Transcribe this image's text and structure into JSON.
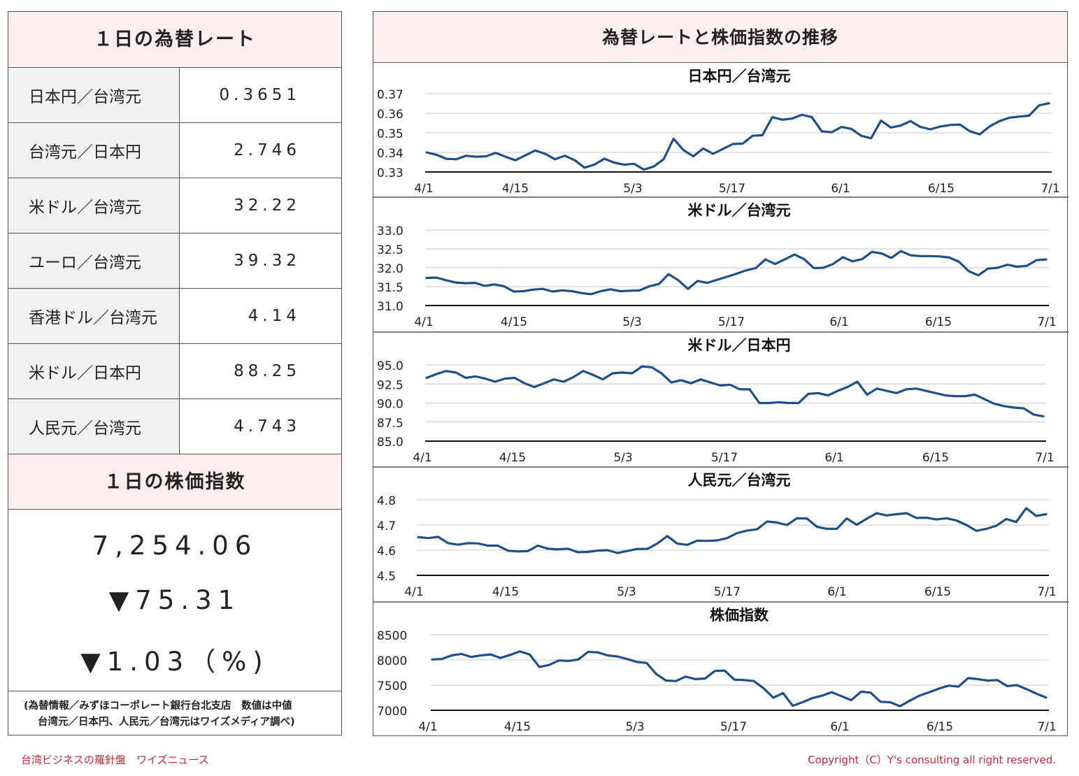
{
  "rates_panel": {
    "title": "１日の為替レート",
    "rows": [
      {
        "label": "日本円／台湾元",
        "value": "0.3651"
      },
      {
        "label": "台湾元／日本円",
        "value": "2.746"
      },
      {
        "label": "米ドル／台湾元",
        "value": "32.22"
      },
      {
        "label": "ユーロ／台湾元",
        "value": "39.32"
      },
      {
        "label": "香港ドル／台湾元",
        "value": "4.14"
      },
      {
        "label": "米ドル／日本円",
        "value": "88.25"
      },
      {
        "label": "人民元／台湾元",
        "value": "4.743"
      }
    ]
  },
  "stock_panel": {
    "title": "１日の株価指数",
    "index_value": "7,254.06",
    "change": "▼75.31",
    "change_pct": "▼1.03（%)"
  },
  "source_note": {
    "line1": "(為替情報／みずほコーポレート銀行台北支店　数値は中値",
    "line2": "台湾元／日本円、人民元／台湾元はワイズメディア調べ)"
  },
  "right_panel": {
    "title": "為替レートと株価指数の推移"
  },
  "footer": {
    "left": "台湾ビジネスの羅針盤　ワイズニュース",
    "right": "Copyright（C）Y's consulting all right reserved."
  },
  "colors": {
    "line": "#1f4f86",
    "header_bg": "#fdefef",
    "label_bg": "#f1f1f1",
    "footer_text": "#c8283c"
  },
  "chart_data": [
    {
      "type": "line",
      "title": "日本円／台湾元",
      "x_ticks": [
        "4/1",
        "4/15",
        "5/3",
        "5/17",
        "6/1",
        "6/15",
        "7/1"
      ],
      "y_ticks": [
        "0.37",
        "0.36",
        "0.35",
        "0.34",
        "0.33"
      ],
      "ylim": [
        0.33,
        0.37
      ],
      "grid": true,
      "values": [
        0.34,
        0.3388,
        0.3367,
        0.3365,
        0.3383,
        0.3378,
        0.338,
        0.3398,
        0.3378,
        0.336,
        0.3385,
        0.341,
        0.3393,
        0.3365,
        0.3383,
        0.336,
        0.3322,
        0.3338,
        0.3368,
        0.3348,
        0.3337,
        0.3342,
        0.3312,
        0.3328,
        0.3365,
        0.347,
        0.3412,
        0.338,
        0.342,
        0.3393,
        0.3418,
        0.3443,
        0.3445,
        0.3485,
        0.3488,
        0.358,
        0.3567,
        0.3573,
        0.3592,
        0.358,
        0.3508,
        0.3503,
        0.353,
        0.352,
        0.3485,
        0.3472,
        0.3562,
        0.3527,
        0.3537,
        0.356,
        0.353,
        0.3518,
        0.3532,
        0.354,
        0.3542,
        0.3508,
        0.3492,
        0.3533,
        0.356,
        0.3577,
        0.3583,
        0.3588,
        0.364,
        0.3651
      ]
    },
    {
      "type": "line",
      "title": "米ドル／台湾元",
      "x_ticks": [
        "4/1",
        "4/15",
        "5/3",
        "5/17",
        "6/1",
        "6/15",
        "7/1"
      ],
      "y_ticks": [
        "33.0",
        "32.5",
        "32.0",
        "31.5",
        "31.0"
      ],
      "ylim": [
        31.0,
        33.0
      ],
      "grid": true,
      "values": [
        31.73,
        31.74,
        31.67,
        31.61,
        31.59,
        31.6,
        31.52,
        31.56,
        31.51,
        31.37,
        31.38,
        31.42,
        31.44,
        31.37,
        31.4,
        31.38,
        31.33,
        31.3,
        31.38,
        31.43,
        31.38,
        31.39,
        31.4,
        31.51,
        31.57,
        31.83,
        31.67,
        31.44,
        31.65,
        31.6,
        31.68,
        31.76,
        31.84,
        31.93,
        31.99,
        32.22,
        32.1,
        32.22,
        32.35,
        32.23,
        31.99,
        32.0,
        32.1,
        32.28,
        32.17,
        32.23,
        32.42,
        32.38,
        32.26,
        32.44,
        32.33,
        32.31,
        32.31,
        32.3,
        32.27,
        32.16,
        31.91,
        31.8,
        31.98,
        32.0,
        32.08,
        32.03,
        32.05,
        32.2,
        32.22
      ]
    },
    {
      "type": "line",
      "title": "米ドル／日本円",
      "x_ticks": [
        "4/1",
        "4/15",
        "5/3",
        "5/17",
        "6/1",
        "6/15",
        "7/1"
      ],
      "y_ticks": [
        "95.0",
        "92.5",
        "90.0",
        "87.5",
        "85.0"
      ],
      "ylim": [
        85.0,
        95.0
      ],
      "grid": true,
      "values": [
        93.3,
        93.8,
        94.2,
        94.0,
        93.3,
        93.5,
        93.2,
        92.8,
        93.2,
        93.3,
        92.6,
        92.1,
        92.6,
        93.1,
        92.8,
        93.4,
        94.2,
        93.7,
        93.1,
        93.9,
        94.0,
        93.9,
        94.8,
        94.7,
        93.9,
        92.7,
        93.0,
        92.6,
        93.1,
        92.7,
        92.3,
        92.4,
        91.8,
        91.8,
        90.0,
        90.0,
        90.1,
        90.0,
        90.0,
        91.2,
        91.3,
        91.0,
        91.6,
        92.1,
        92.8,
        91.1,
        91.9,
        91.6,
        91.3,
        91.8,
        91.9,
        91.6,
        91.3,
        91.0,
        90.9,
        90.9,
        91.1,
        90.5,
        89.9,
        89.6,
        89.4,
        89.3,
        88.5,
        88.25
      ]
    },
    {
      "type": "line",
      "title": "人民元／台湾元",
      "x_ticks": [
        "4/1",
        "4/15",
        "5/3",
        "5/17",
        "6/1",
        "6/15",
        "7/1"
      ],
      "y_ticks": [
        "4.8",
        "4.7",
        "4.6",
        "4.5"
      ],
      "ylim": [
        4.5,
        4.8
      ],
      "grid": true,
      "values": [
        4.652,
        4.648,
        4.653,
        4.628,
        4.622,
        4.628,
        4.627,
        4.618,
        4.618,
        4.598,
        4.595,
        4.596,
        4.618,
        4.606,
        4.603,
        4.606,
        4.592,
        4.593,
        4.598,
        4.6,
        4.589,
        4.597,
        4.605,
        4.605,
        4.627,
        4.656,
        4.626,
        4.621,
        4.638,
        4.637,
        4.639,
        4.648,
        4.668,
        4.678,
        4.683,
        4.714,
        4.71,
        4.7,
        4.727,
        4.726,
        4.693,
        4.685,
        4.685,
        4.726,
        4.701,
        4.725,
        4.747,
        4.738,
        4.743,
        4.747,
        4.728,
        4.729,
        4.722,
        4.727,
        4.718,
        4.7,
        4.677,
        4.685,
        4.697,
        4.724,
        4.712,
        4.767,
        4.736,
        4.743
      ]
    },
    {
      "type": "line",
      "title": "株価指数",
      "x_ticks": [
        "4/1",
        "4/15",
        "5/3",
        "5/17",
        "6/1",
        "6/15",
        "7/1"
      ],
      "y_ticks": [
        "8500",
        "8000",
        "7500",
        "7000"
      ],
      "ylim": [
        7000,
        8500
      ],
      "grid": true,
      "values": [
        8010,
        8020,
        8090,
        8120,
        8060,
        8090,
        8110,
        8040,
        8100,
        8170,
        8110,
        7860,
        7900,
        7990,
        7980,
        8010,
        8160,
        8150,
        8090,
        8070,
        8020,
        7960,
        7940,
        7720,
        7590,
        7580,
        7670,
        7620,
        7630,
        7780,
        7790,
        7610,
        7600,
        7580,
        7440,
        7250,
        7340,
        7090,
        7160,
        7240,
        7290,
        7360,
        7280,
        7200,
        7370,
        7350,
        7170,
        7160,
        7080,
        7190,
        7290,
        7360,
        7430,
        7490,
        7470,
        7640,
        7620,
        7590,
        7600,
        7480,
        7500,
        7420,
        7330,
        7254
      ]
    }
  ]
}
